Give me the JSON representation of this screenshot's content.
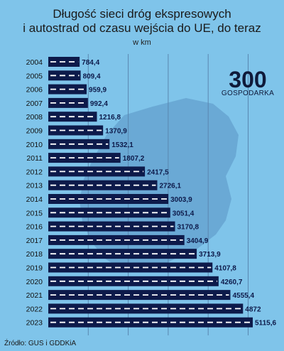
{
  "header": {
    "title_line1": "Długość sieci dróg ekspresowych",
    "title_line2": "i autostrad od czasu wejścia do UE, do teraz",
    "subtitle": "w km"
  },
  "footer": {
    "source": "Źródło: GUS i GDDKiA"
  },
  "logo": {
    "text": "300",
    "word": "GOSPODARKA",
    "colors": {
      "dark": "#0f1a3a",
      "accent": "#2eb886"
    }
  },
  "colors": {
    "background": "#7fc4ea",
    "bar": "#0d1a4a",
    "dash": "#ffffff",
    "label": "#0d1a4a",
    "grid": "#5a87b0",
    "map": "#5a93c2"
  },
  "chart_data": {
    "type": "bar",
    "orientation": "horizontal",
    "title": "Długość sieci dróg ekspresowych i autostrad od czasu wejścia do UE, do teraz",
    "subtitle": "w km",
    "categories": [
      "2004",
      "2005",
      "2006",
      "2007",
      "2008",
      "2009",
      "2010",
      "2011",
      "2012",
      "2013",
      "2014",
      "2015",
      "2016",
      "2017",
      "2018",
      "2019",
      "2020",
      "2021",
      "2022",
      "2023"
    ],
    "values": [
      784.4,
      809.4,
      959.9,
      992.4,
      1216.8,
      1370.9,
      1532.1,
      1807.2,
      2417.5,
      2726.1,
      3003.9,
      3051.4,
      3170.8,
      3404.9,
      3713.9,
      4107.8,
      4260.7,
      4555.4,
      4872,
      5115.6
    ],
    "value_labels": [
      "784,4",
      "809,4",
      "959,9",
      "992,4",
      "1216,8",
      "1370,9",
      "1532,1",
      "1807,2",
      "2417,5",
      "2726,1",
      "3003,9",
      "3051,4",
      "3170,8",
      "3404,9",
      "3713,9",
      "4107,8",
      "4260,7",
      "4555,4",
      "4872",
      "5115,6"
    ],
    "xlim": [
      0,
      5200
    ],
    "grid": true
  }
}
